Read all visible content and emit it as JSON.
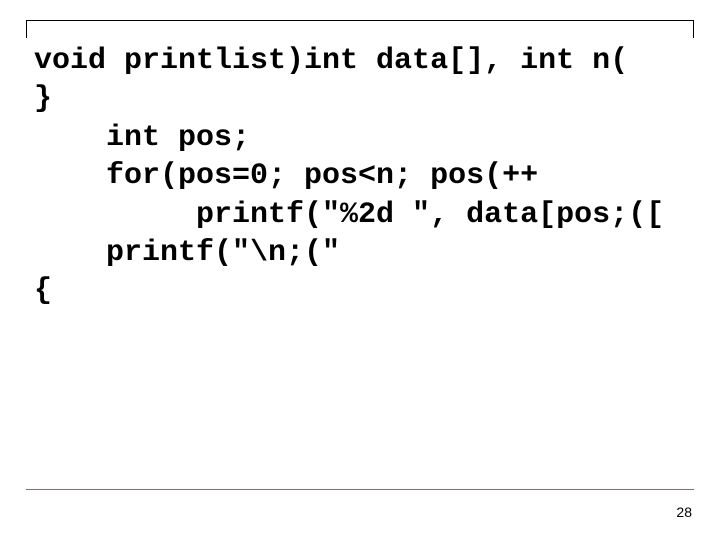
{
  "slide": {
    "page_number": "28",
    "code": {
      "line1": "void printlist)int data[], int n(",
      "line2": "}",
      "line3": "    int pos;",
      "line4": "    for(pos=0; pos<n; pos(++",
      "line5": "         printf(\"%2d \", data[pos;([",
      "line6": "    printf(\"\\n;(\"",
      "line7": "{"
    },
    "colors": {
      "background": "#ffffff",
      "text": "#000000",
      "accent_border": "#000000",
      "bottom_rule": "#8a7a3a"
    },
    "typography": {
      "font_family": "Courier New",
      "font_size_pt": 22,
      "font_weight": "bold",
      "page_num_font_family": "Arial",
      "page_num_font_size_pt": 10
    }
  }
}
